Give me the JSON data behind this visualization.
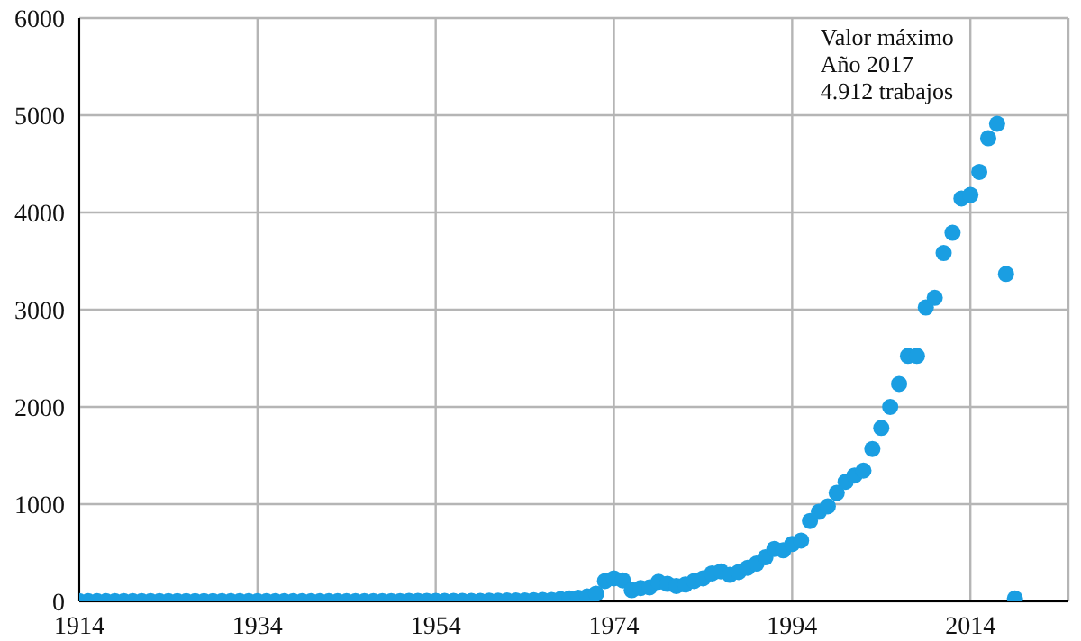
{
  "chart_data": {
    "type": "scatter",
    "x": [
      1914,
      1915,
      1916,
      1917,
      1918,
      1919,
      1920,
      1921,
      1922,
      1923,
      1924,
      1925,
      1926,
      1927,
      1928,
      1929,
      1930,
      1931,
      1932,
      1933,
      1934,
      1935,
      1936,
      1937,
      1938,
      1939,
      1940,
      1941,
      1942,
      1943,
      1944,
      1945,
      1946,
      1947,
      1948,
      1949,
      1950,
      1951,
      1952,
      1953,
      1954,
      1955,
      1956,
      1957,
      1958,
      1959,
      1960,
      1961,
      1962,
      1963,
      1964,
      1965,
      1966,
      1967,
      1968,
      1969,
      1970,
      1971,
      1972,
      1973,
      1974,
      1975,
      1976,
      1977,
      1978,
      1979,
      1980,
      1981,
      1982,
      1983,
      1984,
      1985,
      1986,
      1987,
      1988,
      1989,
      1990,
      1991,
      1992,
      1993,
      1994,
      1995,
      1996,
      1997,
      1998,
      1999,
      2000,
      2001,
      2002,
      2003,
      2004,
      2005,
      2006,
      2007,
      2008,
      2009,
      2010,
      2011,
      2012,
      2013,
      2014,
      2015,
      2016,
      2017,
      2018,
      2019
    ],
    "series": [
      {
        "color": "#1a9ee2",
        "values": [
          2,
          2,
          2,
          2,
          2,
          2,
          2,
          2,
          2,
          2,
          2,
          2,
          2,
          2,
          2,
          2,
          2,
          2,
          2,
          2,
          2,
          2,
          2,
          2,
          2,
          2,
          2,
          2,
          2,
          2,
          2,
          2,
          2,
          2,
          2,
          2,
          2,
          4,
          4,
          4,
          4,
          4,
          4,
          4,
          4,
          4,
          8,
          8,
          9,
          10,
          10,
          12,
          13,
          14,
          22,
          29,
          36,
          50,
          79,
          209,
          237,
          216,
          115,
          137,
          144,
          201,
          180,
          158,
          173,
          209,
          237,
          288,
          309,
          273,
          302,
          345,
          388,
          453,
          540,
          525,
          590,
          626,
          827,
          921,
          978,
          1115,
          1230,
          1295,
          1345,
          1568,
          1784,
          2000,
          2237,
          2525,
          2525,
          3022,
          3122,
          3583,
          3791,
          4144,
          4180,
          4417,
          4763,
          4912,
          3367,
          30
        ]
      }
    ],
    "xlim": [
      1914,
      2025
    ],
    "xticks": [
      1914,
      1934,
      1954,
      1974,
      1994,
      2014
    ],
    "ylim": [
      0,
      6000
    ],
    "yticks": [
      0,
      1000,
      2000,
      3000,
      4000,
      5000,
      6000
    ],
    "grid": true,
    "marker": "circle",
    "annotations": [
      {
        "text": "Valor máximo\nAño 2017\n4.912 trabajos",
        "x": 2017,
        "y": 4912
      }
    ]
  }
}
